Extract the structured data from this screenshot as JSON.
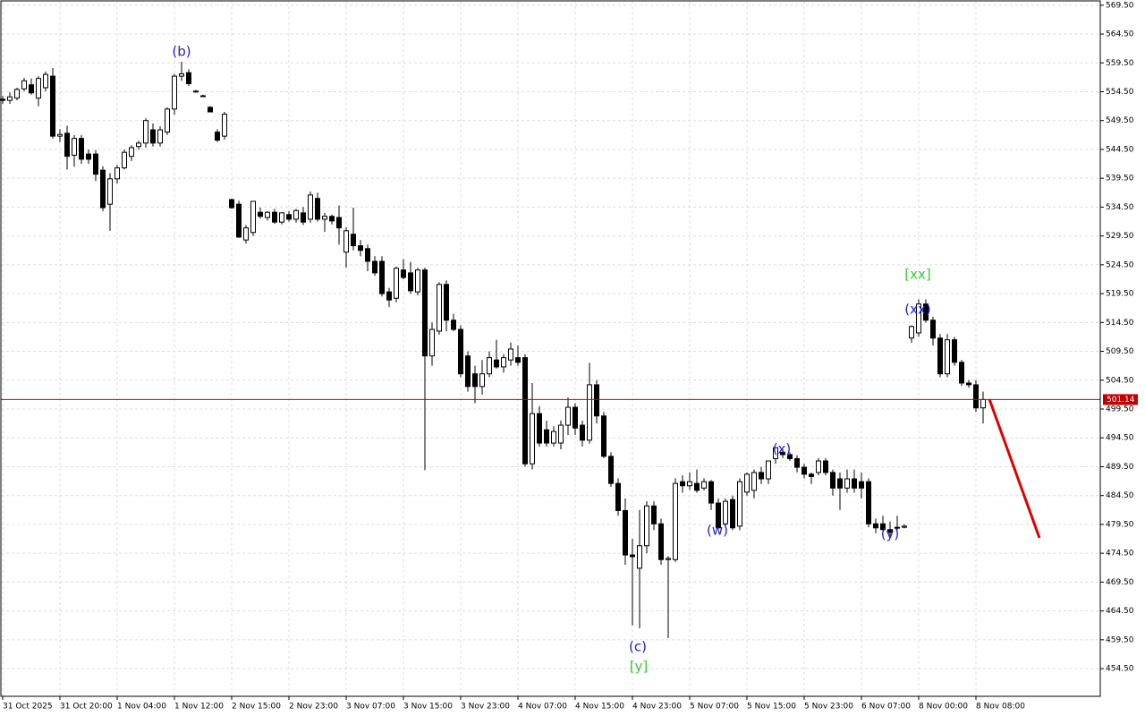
{
  "chart_data": {
    "type": "candlestick",
    "categories": [
      "31 Oct 2025",
      null,
      null,
      null,
      null,
      null,
      null,
      null,
      "31 Oct 20:00",
      null,
      null,
      null,
      null,
      null,
      null,
      null,
      "1 Nov 04:00",
      null,
      null,
      null,
      null,
      null,
      null,
      null,
      "1 Nov 12:00",
      null,
      null,
      null,
      null,
      null,
      null,
      null,
      "2 Nov 15:00",
      null,
      null,
      null,
      null,
      null,
      null,
      null,
      "2 Nov 23:00",
      null,
      null,
      null,
      null,
      null,
      null,
      null,
      "3 Nov 07:00",
      null,
      null,
      null,
      null,
      null,
      null,
      null,
      "3 Nov 15:00",
      null,
      null,
      null,
      null,
      null,
      null,
      null,
      "3 Nov 23:00",
      null,
      null,
      null,
      null,
      null,
      null,
      null,
      "4 Nov 07:00",
      null,
      null,
      null,
      null,
      null,
      null,
      null,
      "4 Nov 15:00",
      null,
      null,
      null,
      null,
      null,
      null,
      null,
      "4 Nov 23:00",
      null,
      null,
      null,
      null,
      null,
      null,
      null,
      "5 Nov 07:00",
      null,
      null,
      null,
      null,
      null,
      null,
      null,
      "5 Nov 15:00",
      null,
      null,
      null,
      null,
      null,
      null,
      null,
      "5 Nov 23:00",
      null,
      null,
      null,
      null,
      null,
      null,
      null,
      "6 Nov 07:00",
      null,
      null,
      null,
      null,
      null,
      null,
      null,
      "8 Nov 00:00",
      null,
      null,
      null,
      null,
      null,
      null,
      null,
      "8 Nov 08:00",
      null
    ],
    "ohlc": [
      [
        553.2,
        553.8,
        552.4,
        553.0
      ],
      [
        553.0,
        554.4,
        552.4,
        553.6
      ],
      [
        553.4,
        555.2,
        553.0,
        554.9
      ],
      [
        555.0,
        556.9,
        554.6,
        556.4
      ],
      [
        555.7,
        556.8,
        554.0,
        554.3
      ],
      [
        553.4,
        557.2,
        552.0,
        556.8
      ],
      [
        555.2,
        558.0,
        554.6,
        557.5
      ],
      [
        557.2,
        558.6,
        546.4,
        546.8
      ],
      [
        546.8,
        548.0,
        545.8,
        547.1
      ],
      [
        547.3,
        548.6,
        541.0,
        543.3
      ],
      [
        543.5,
        547.0,
        541.5,
        546.4
      ],
      [
        546.4,
        547.0,
        542.0,
        542.8
      ],
      [
        543.7,
        544.5,
        542.0,
        542.8
      ],
      [
        543.7,
        544.4,
        539.0,
        540.2
      ],
      [
        540.9,
        541.6,
        533.8,
        534.4
      ],
      [
        535.0,
        540.4,
        530.4,
        539.4
      ],
      [
        539.4,
        541.8,
        538.6,
        541.3
      ],
      [
        541.3,
        544.5,
        541.0,
        544.0
      ],
      [
        543.3,
        545.2,
        542.5,
        544.8
      ],
      [
        545.0,
        546.0,
        544.5,
        545.6
      ],
      [
        545.6,
        549.9,
        544.8,
        549.5
      ],
      [
        547.9,
        549.0,
        545.0,
        545.6
      ],
      [
        545.6,
        548.5,
        545.0,
        547.9
      ],
      [
        547.5,
        551.8,
        547.0,
        551.5
      ],
      [
        551.5,
        557.6,
        550.5,
        557.2
      ],
      [
        557.2,
        559.7,
        556.4,
        557.6
      ],
      [
        557.8,
        558.4,
        555.5,
        555.9
      ],
      [
        554.6,
        554.8,
        554.4,
        554.6
      ],
      [
        553.8,
        554.0,
        553.6,
        553.8
      ],
      [
        551.8,
        552.0,
        551.0,
        551.0
      ],
      [
        547.5,
        548.0,
        545.8,
        546.1
      ],
      [
        546.8,
        551.0,
        546.2,
        550.6
      ],
      [
        535.8,
        536.0,
        534.2,
        534.4
      ],
      [
        535.0,
        535.6,
        529.2,
        529.3
      ],
      [
        528.8,
        531.4,
        528.2,
        530.9
      ],
      [
        530.1,
        535.5,
        529.5,
        535.5
      ],
      [
        533.6,
        534.4,
        532.5,
        532.9
      ],
      [
        532.7,
        533.8,
        532.2,
        533.6
      ],
      [
        533.6,
        534.2,
        531.6,
        531.9
      ],
      [
        531.9,
        533.6,
        531.5,
        533.5
      ],
      [
        533.2,
        533.8,
        532.0,
        532.4
      ],
      [
        532.4,
        534.2,
        531.8,
        533.9
      ],
      [
        533.5,
        534.5,
        531.4,
        531.9
      ],
      [
        532.4,
        537.2,
        531.8,
        536.6
      ],
      [
        536.0,
        537.0,
        532.0,
        532.4
      ],
      [
        532.4,
        533.5,
        530.2,
        532.9
      ],
      [
        532.9,
        533.2,
        531.5,
        532.1
      ],
      [
        532.7,
        534.8,
        528.0,
        530.9
      ],
      [
        526.7,
        531.0,
        524.0,
        530.4
      ],
      [
        529.8,
        534.4,
        527.0,
        527.8
      ],
      [
        527.8,
        528.8,
        526.0,
        527.0
      ],
      [
        527.3,
        528.0,
        523.4,
        525.1
      ],
      [
        525.1,
        526.0,
        522.6,
        523.1
      ],
      [
        525.1,
        526.0,
        519.0,
        519.5
      ],
      [
        519.8,
        520.5,
        517.2,
        518.4
      ],
      [
        518.7,
        524.2,
        518.0,
        523.9
      ],
      [
        523.6,
        525.5,
        522.0,
        522.3
      ],
      [
        523.1,
        525.0,
        519.5,
        520.0
      ],
      [
        519.8,
        524.0,
        519.2,
        523.6
      ],
      [
        523.6,
        524.0,
        488.9,
        508.7
      ],
      [
        508.7,
        514.5,
        507.0,
        513.3
      ],
      [
        513.0,
        521.5,
        512.4,
        521.1
      ],
      [
        521.1,
        521.8,
        513.0,
        514.9
      ],
      [
        514.9,
        516.0,
        513.0,
        513.3
      ],
      [
        513.3,
        514.0,
        505.0,
        505.6
      ],
      [
        508.7,
        509.5,
        502.5,
        503.4
      ],
      [
        505.6,
        507.0,
        500.5,
        503.4
      ],
      [
        503.4,
        508.0,
        502.0,
        505.6
      ],
      [
        505.6,
        509.5,
        505.0,
        508.4
      ],
      [
        508.0,
        511.5,
        506.5,
        506.8
      ],
      [
        506.8,
        509.0,
        505.8,
        508.4
      ],
      [
        508.0,
        511.0,
        507.0,
        509.9
      ],
      [
        508.4,
        510.5,
        507.0,
        507.6
      ],
      [
        508.4,
        509.0,
        489.5,
        490.0
      ],
      [
        490.0,
        504.0,
        489.0,
        498.7
      ],
      [
        498.7,
        500.0,
        493.0,
        493.6
      ],
      [
        495.9,
        497.5,
        493.0,
        493.6
      ],
      [
        493.6,
        496.5,
        493.0,
        495.6
      ],
      [
        493.6,
        497.5,
        492.5,
        496.7
      ],
      [
        496.7,
        501.5,
        495.0,
        499.8
      ],
      [
        499.8,
        500.5,
        495.0,
        496.2
      ],
      [
        496.7,
        497.5,
        493.0,
        494.1
      ],
      [
        494.1,
        507.5,
        493.5,
        503.7
      ],
      [
        503.7,
        504.5,
        497.0,
        498.3
      ],
      [
        498.3,
        499.0,
        491.0,
        491.3
      ],
      [
        491.3,
        492.0,
        486.0,
        486.6
      ],
      [
        486.6,
        487.5,
        481.0,
        481.9
      ],
      [
        481.9,
        484.0,
        472.5,
        474.2
      ],
      [
        474.2,
        477.0,
        462.0,
        473.9
      ],
      [
        471.9,
        482.0,
        461.5,
        475.8
      ],
      [
        475.8,
        483.5,
        474.5,
        482.7
      ],
      [
        482.7,
        483.5,
        478.5,
        479.6
      ],
      [
        479.6,
        480.5,
        472.5,
        473.4
      ],
      [
        473.4,
        474.0,
        459.8,
        473.6
      ],
      [
        473.4,
        487.5,
        473.0,
        486.6
      ],
      [
        486.9,
        488.0,
        485.0,
        486.2
      ],
      [
        486.2,
        488.5,
        485.5,
        486.9
      ],
      [
        486.6,
        489.0,
        485.0,
        485.4
      ],
      [
        485.8,
        487.5,
        485.4,
        486.9
      ],
      [
        486.9,
        487.2,
        482.0,
        483.2
      ],
      [
        483.2,
        484.0,
        478.5,
        478.9
      ],
      [
        479.6,
        484.0,
        478.9,
        483.5
      ],
      [
        483.8,
        484.5,
        478.5,
        478.9
      ],
      [
        479.2,
        487.5,
        478.5,
        486.9
      ],
      [
        485.1,
        488.5,
        484.5,
        488.2
      ],
      [
        485.4,
        489.0,
        484.0,
        488.5
      ],
      [
        488.5,
        489.5,
        486.5,
        487.4
      ],
      [
        487.4,
        490.5,
        486.5,
        490.5
      ],
      [
        490.9,
        492.8,
        490.0,
        492.8
      ],
      [
        492.0,
        492.5,
        491.0,
        491.6
      ],
      [
        491.6,
        492.0,
        490.5,
        490.9
      ],
      [
        490.9,
        491.5,
        488.5,
        489.4
      ],
      [
        489.4,
        490.0,
        487.5,
        488.2
      ],
      [
        488.2,
        488.5,
        486.5,
        487.8
      ],
      [
        488.5,
        491.0,
        488.0,
        490.5
      ],
      [
        490.5,
        491.0,
        488.0,
        488.5
      ],
      [
        488.5,
        489.0,
        484.5,
        485.8
      ],
      [
        487.4,
        488.5,
        482.0,
        485.8
      ],
      [
        485.8,
        489.0,
        485.0,
        487.4
      ],
      [
        487.4,
        489.0,
        485.0,
        485.8
      ],
      [
        486.9,
        488.5,
        484.0,
        485.8
      ],
      [
        486.9,
        487.5,
        479.0,
        479.6
      ],
      [
        479.6,
        480.5,
        478.0,
        478.9
      ],
      [
        479.6,
        481.0,
        478.0,
        478.6
      ],
      [
        478.6,
        480.0,
        477.5,
        478.1
      ],
      [
        479.0,
        481.0,
        478.5,
        478.9
      ],
      [
        479.0,
        479.5,
        478.8,
        479.2
      ],
      [
        511.8,
        514.0,
        511.0,
        513.8
      ],
      [
        512.7,
        518.5,
        512.0,
        517.7
      ],
      [
        517.7,
        518.5,
        514.5,
        514.9
      ],
      [
        514.9,
        515.5,
        510.5,
        511.8
      ],
      [
        511.8,
        512.5,
        505.0,
        505.6
      ],
      [
        505.6,
        512.5,
        505.0,
        511.5
      ],
      [
        511.5,
        512.0,
        507.0,
        507.6
      ],
      [
        507.6,
        508.0,
        503.5,
        504.0
      ],
      [
        504.0,
        504.5,
        503.2,
        503.7
      ],
      [
        503.7,
        504.5,
        499.0,
        499.7
      ],
      [
        499.7,
        502.5,
        497.0,
        501.14
      ]
    ],
    "ylim": [
      449.7,
      570.4
    ],
    "yticks": [
      {
        "value": 569.5,
        "label": "569.50"
      },
      {
        "value": 564.5,
        "label": "564.50"
      },
      {
        "value": 559.5,
        "label": "559.50"
      },
      {
        "value": 554.5,
        "label": "554.50"
      },
      {
        "value": 549.5,
        "label": "549.50"
      },
      {
        "value": 544.5,
        "label": "544.50"
      },
      {
        "value": 539.5,
        "label": "539.50"
      },
      {
        "value": 534.5,
        "label": "534.50"
      },
      {
        "value": 529.5,
        "label": "529.50"
      },
      {
        "value": 524.5,
        "label": "524.50"
      },
      {
        "value": 519.5,
        "label": "519.50"
      },
      {
        "value": 514.5,
        "label": "514.50"
      },
      {
        "value": 509.5,
        "label": "509.50"
      },
      {
        "value": 504.5,
        "label": "504.50"
      },
      {
        "value": 499.5,
        "label": "499.50"
      },
      {
        "value": 494.5,
        "label": "494.50"
      },
      {
        "value": 489.5,
        "label": "489.50"
      },
      {
        "value": 484.5,
        "label": "484.50"
      },
      {
        "value": 479.5,
        "label": "479.50"
      },
      {
        "value": 474.5,
        "label": "474.50"
      },
      {
        "value": 469.5,
        "label": "469.50"
      },
      {
        "value": 464.5,
        "label": "464.50"
      },
      {
        "value": 459.5,
        "label": "459.50"
      },
      {
        "value": 454.5,
        "label": "454.50"
      }
    ],
    "grid": true,
    "up_color": "#ffffff",
    "down_color": "#000000",
    "price_line": 501.14,
    "price_line_color": "#c00000",
    "annotations": [
      {
        "text": "(b)",
        "color": "#1f1fd0"
      },
      {
        "text": "(c)",
        "color": "#1f1fd0"
      },
      {
        "text": "[y]",
        "color": "#33cc33"
      },
      {
        "text": "(w)",
        "color": "#1f1fd0"
      },
      {
        "text": "(x)",
        "color": "#1f1fd0"
      },
      {
        "text": "(y)",
        "color": "#1f1fd0"
      },
      {
        "text": "[xx]",
        "color": "#33cc33"
      },
      {
        "text": "(xx)",
        "color": "#1f1fd0"
      }
    ]
  }
}
